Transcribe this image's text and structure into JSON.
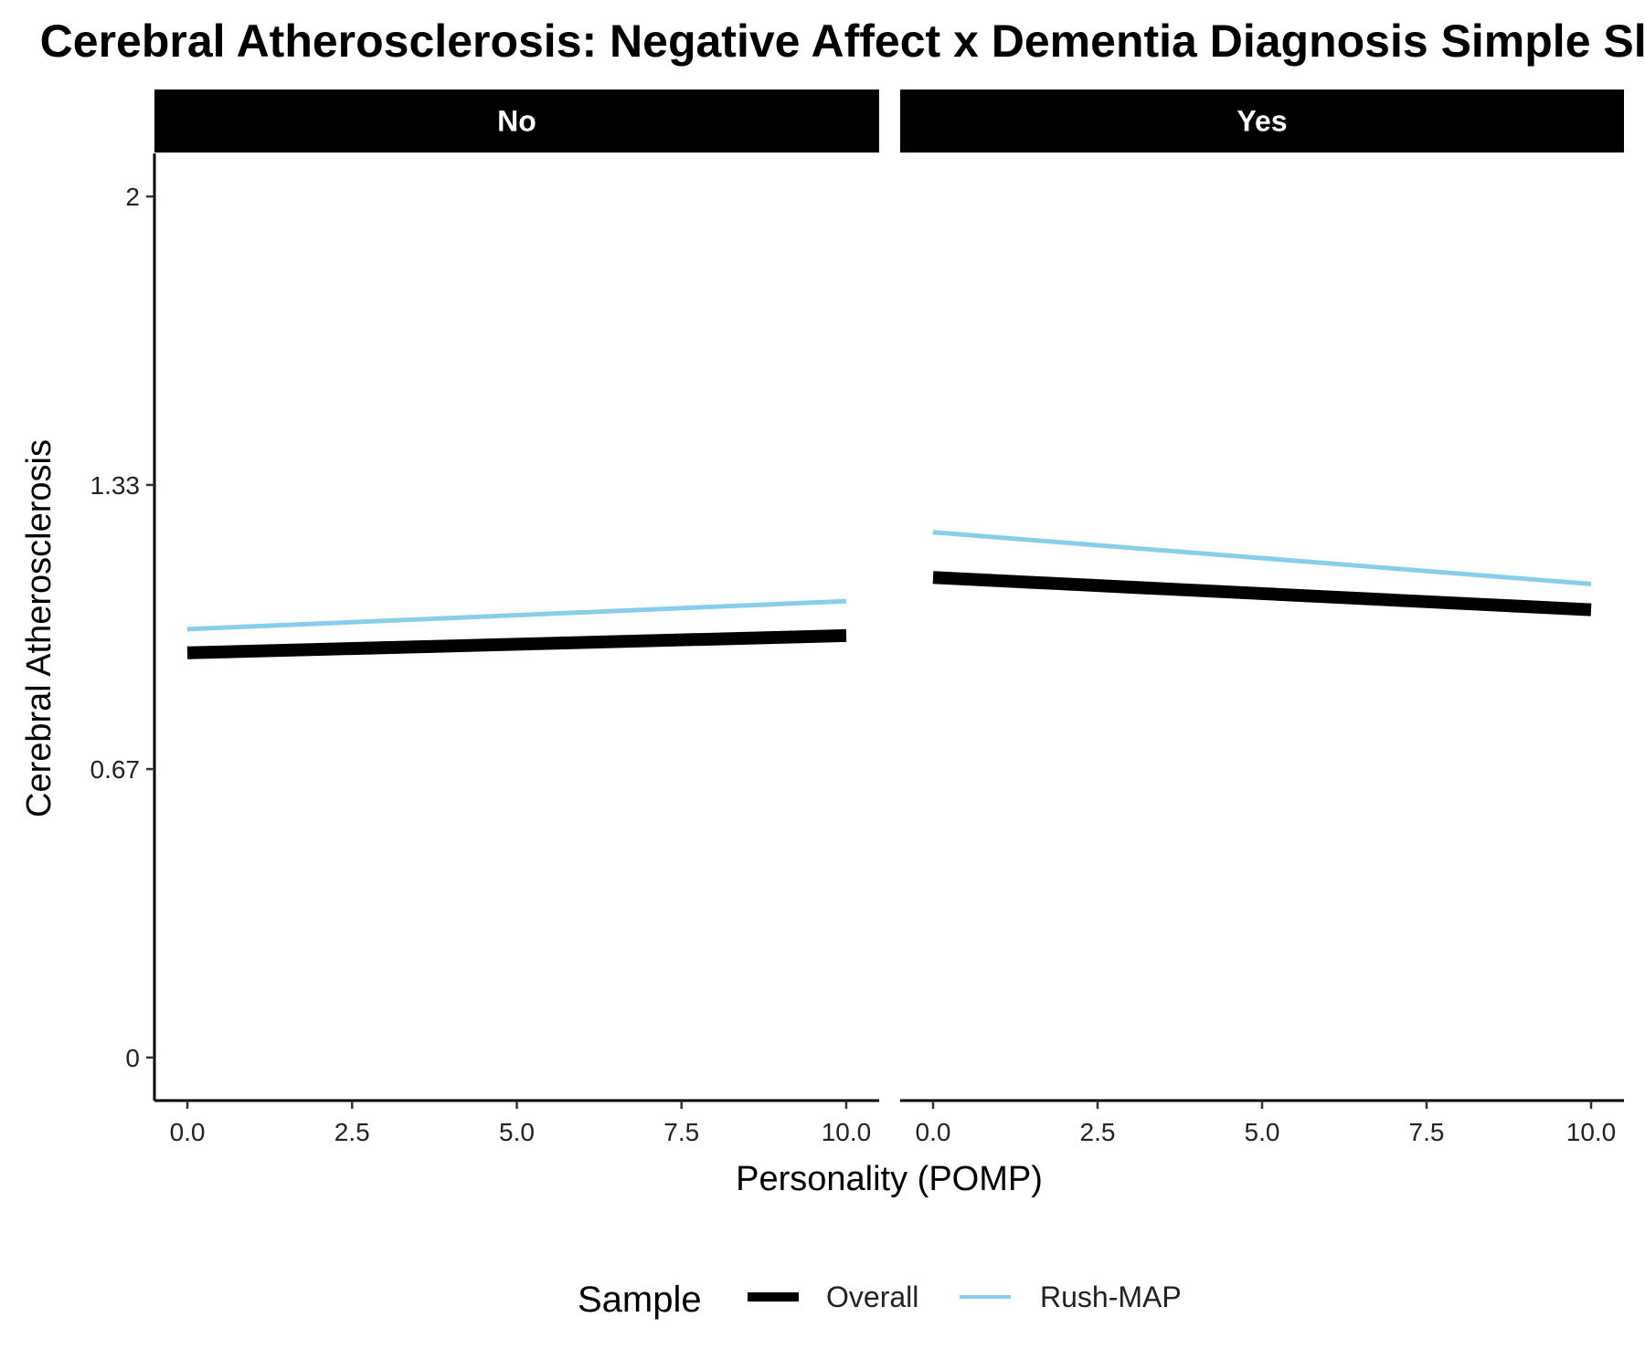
{
  "chart_data": {
    "type": "line",
    "title": "Cerebral Atherosclerosis: Negative Affect x Dementia Diagnosis Simple Slopes",
    "xlabel": "Personality (POMP)",
    "ylabel": "Cerebral Atherosclerosis",
    "xlim": [
      -0.5,
      10.5
    ],
    "ylim": [
      -0.1,
      2.1
    ],
    "xticks": [
      0,
      2.5,
      5,
      7.5,
      10
    ],
    "xtick_labels": [
      "0.0",
      "2.5",
      "5.0",
      "7.5",
      "10.0"
    ],
    "yticks": [
      0,
      0.67,
      1.33,
      2
    ],
    "ytick_labels": [
      "0",
      "0.67",
      "1.33",
      "2"
    ],
    "grid": false,
    "legend": {
      "title": "Sample",
      "position": "bottom"
    },
    "panels": [
      {
        "label": "No",
        "series": [
          {
            "name": "Overall",
            "x": [
              0,
              10
            ],
            "y": [
              0.94,
              0.98
            ],
            "color": "#000000"
          },
          {
            "name": "Rush-MAP",
            "x": [
              0,
              10
            ],
            "y": [
              0.995,
              1.06
            ],
            "color": "#87CEEB"
          }
        ]
      },
      {
        "label": "Yes",
        "series": [
          {
            "name": "Overall",
            "x": [
              0,
              10
            ],
            "y": [
              1.115,
              1.04
            ],
            "color": "#000000"
          },
          {
            "name": "Rush-MAP",
            "x": [
              0,
              10
            ],
            "y": [
              1.22,
              1.1
            ],
            "color": "#87CEEB"
          }
        ]
      }
    ],
    "series_legend": [
      {
        "name": "Overall",
        "color": "#000000"
      },
      {
        "name": "Rush-MAP",
        "color": "#87CEEB"
      }
    ]
  }
}
